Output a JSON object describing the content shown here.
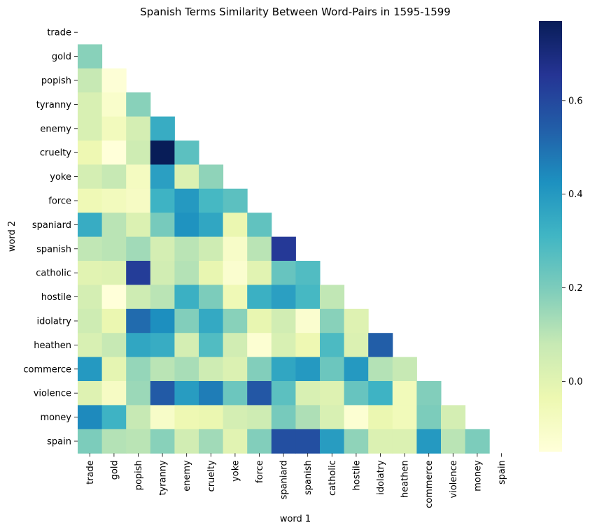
{
  "chart_data": {
    "type": "heatmap",
    "title": "Spanish Terms Similarity Between Word-Pairs in 1595-1599",
    "xlabel": "word 1",
    "ylabel": "word 2",
    "x_categories": [
      "trade",
      "gold",
      "popish",
      "tyranny",
      "enemy",
      "cruelty",
      "yoke",
      "force",
      "spaniard",
      "spanish",
      "catholic",
      "hostile",
      "idolatry",
      "heathen",
      "commerce",
      "violence",
      "money",
      "spain"
    ],
    "y_categories": [
      "trade",
      "gold",
      "popish",
      "tyranny",
      "enemy",
      "cruelty",
      "yoke",
      "force",
      "spaniard",
      "spanish",
      "catholic",
      "hostile",
      "idolatry",
      "heathen",
      "commerce",
      "violence",
      "money",
      "spain"
    ],
    "mask": "upper triangle including diagonal",
    "matrix_lower": [
      [],
      [
        0.18
      ],
      [
        0.08,
        -0.14
      ],
      [
        0.03,
        -0.11,
        0.18
      ],
      [
        0.03,
        -0.07,
        0.04,
        0.34
      ],
      [
        -0.04,
        -0.15,
        0.06,
        0.77,
        0.26
      ],
      [
        0.04,
        0.08,
        -0.08,
        0.38,
        0.02,
        0.17
      ],
      [
        -0.05,
        -0.07,
        -0.09,
        0.32,
        0.4,
        0.3,
        0.26
      ],
      [
        0.34,
        0.1,
        0.02,
        0.21,
        0.42,
        0.36,
        -0.03,
        0.25
      ],
      [
        0.09,
        0.1,
        0.14,
        0.04,
        0.1,
        0.06,
        -0.1,
        0.1,
        0.64
      ],
      [
        0.0,
        0.01,
        0.63,
        0.05,
        0.11,
        -0.02,
        -0.12,
        0.0,
        0.24,
        0.28
      ],
      [
        0.04,
        -0.15,
        0.06,
        0.1,
        0.33,
        0.2,
        -0.05,
        0.33,
        0.38,
        0.3,
        0.09
      ],
      [
        0.06,
        -0.03,
        0.51,
        0.43,
        0.19,
        0.35,
        0.18,
        -0.02,
        0.05,
        -0.12,
        0.18,
        0.01
      ],
      [
        0.03,
        0.08,
        0.36,
        0.34,
        0.04,
        0.28,
        0.05,
        -0.13,
        0.03,
        -0.04,
        0.29,
        0.02,
        0.54
      ],
      [
        0.4,
        -0.01,
        0.16,
        0.1,
        0.13,
        0.06,
        0.02,
        0.19,
        0.36,
        0.4,
        0.23,
        0.4,
        0.11,
        0.08
      ],
      [
        0.01,
        -0.09,
        0.15,
        0.55,
        0.39,
        0.47,
        0.23,
        0.56,
        0.26,
        0.03,
        0.01,
        0.24,
        0.32,
        -0.06,
        0.19
      ],
      [
        0.44,
        0.32,
        0.08,
        -0.1,
        -0.04,
        -0.03,
        0.04,
        0.06,
        0.21,
        0.12,
        0.03,
        -0.13,
        -0.03,
        -0.06,
        0.2,
        0.04
      ],
      [
        0.2,
        0.11,
        0.1,
        0.18,
        0.05,
        0.14,
        0.0,
        0.19,
        0.58,
        0.58,
        0.39,
        0.17,
        0.02,
        0.02,
        0.4,
        0.1,
        0.2
      ]
    ],
    "colormap": "YlGnBu",
    "colorbar": {
      "range": [
        -0.15,
        0.77
      ],
      "ticks": [
        0.0,
        0.2,
        0.4,
        0.6
      ],
      "tick_labels": [
        "0.0",
        "0.2",
        "0.4",
        "0.6"
      ]
    },
    "grid": false
  }
}
